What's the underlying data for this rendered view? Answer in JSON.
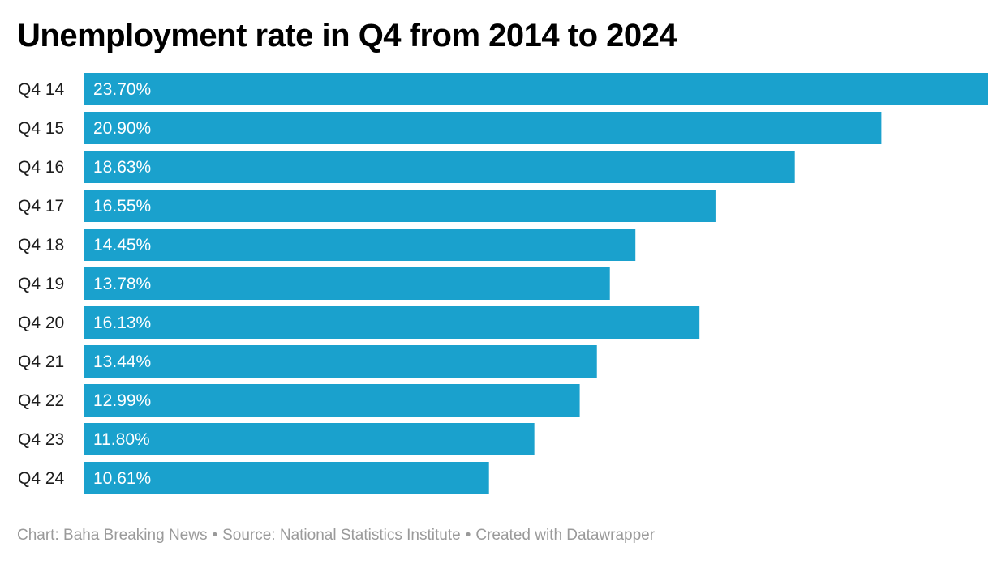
{
  "chart_data": {
    "type": "bar",
    "orientation": "horizontal",
    "title": "Unemployment rate in Q4 from 2014 to 2024",
    "categories": [
      "Q4 14",
      "Q4 15",
      "Q4 16",
      "Q4 17",
      "Q4 18",
      "Q4 19",
      "Q4 20",
      "Q4 21",
      "Q4 22",
      "Q4 23",
      "Q4 24"
    ],
    "values": [
      23.7,
      20.9,
      18.63,
      16.55,
      14.45,
      13.78,
      16.13,
      13.44,
      12.99,
      11.8,
      10.61
    ],
    "value_labels": [
      "23.70%",
      "20.90%",
      "18.63%",
      "16.55%",
      "14.45%",
      "13.78%",
      "16.13%",
      "13.44%",
      "12.99%",
      "11.80%",
      "10.61%"
    ],
    "xlim": [
      0,
      23.7
    ],
    "grid": false,
    "legend": "none",
    "bar_color": "#1aa1cd",
    "label_color": "#ffffff"
  },
  "footer": {
    "chart_credit": "Chart: Baha Breaking News",
    "source": "Source: National Statistics Institute",
    "created_with": "Created with Datawrapper",
    "separator": "•"
  }
}
